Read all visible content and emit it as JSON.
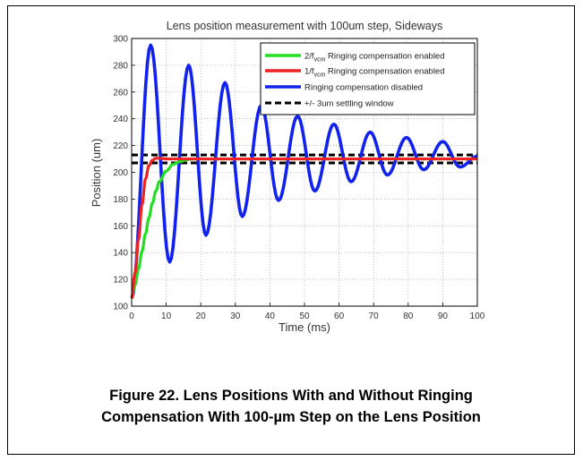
{
  "caption": {
    "line1": "Figure 22. Lens Positions With and Without Ringing",
    "line2": "Compensation With 100-µm Step on the Lens Position"
  },
  "chart_data": {
    "type": "line",
    "title": "Lens position measurement with 100um step, Sideways",
    "xlabel": "Time (ms)",
    "ylabel": "Position (um)",
    "xlim": [
      0,
      100
    ],
    "ylim": [
      100,
      300
    ],
    "xticks": [
      0,
      10,
      20,
      30,
      40,
      50,
      60,
      70,
      80,
      90,
      100
    ],
    "yticks": [
      100,
      120,
      140,
      160,
      180,
      200,
      220,
      240,
      260,
      280,
      300
    ],
    "grid": true,
    "legend_position": "top-right",
    "settling_window": {
      "center": 210,
      "half_width": 3
    },
    "series": [
      {
        "legend_main": "2/f",
        "legend_sub": "vcm",
        "legend_rest": " Ringing compensation enabled",
        "color": "#22dd22",
        "x": [
          0,
          1,
          2,
          3,
          4,
          5,
          6,
          7,
          8,
          10,
          12,
          14,
          16,
          18,
          20,
          25,
          100
        ],
        "y": [
          106,
          116,
          128,
          141,
          154,
          166,
          177,
          186,
          193,
          201,
          206,
          208,
          209.5,
          210,
          210,
          210,
          210
        ]
      },
      {
        "legend_main": "1/f",
        "legend_sub": "vcm",
        "legend_rest": " Ringing compensation enabled",
        "color": "#ee2222",
        "x": [
          0,
          1,
          2,
          3,
          4,
          5,
          6,
          7,
          8,
          10,
          100
        ],
        "y": [
          106,
          125,
          150,
          176,
          195,
          205,
          209,
          210.5,
          210.5,
          210,
          210
        ]
      },
      {
        "legend": "Ringing compensation disabled",
        "color": "#1122ee",
        "x": [
          0,
          5.5,
          11,
          16.5,
          21.5,
          27,
          32,
          37.5,
          42.5,
          48,
          53,
          58.5,
          63.5,
          69,
          74,
          79.5,
          84.5,
          90,
          95,
          100
        ],
        "y": [
          106,
          295,
          133,
          280,
          153,
          267,
          167,
          250,
          179,
          242,
          186,
          236,
          193,
          230,
          198,
          226,
          202,
          223,
          204,
          212
        ]
      },
      {
        "legend": "+/- 3um settling window",
        "color": "#000000",
        "dashed": true
      }
    ]
  }
}
